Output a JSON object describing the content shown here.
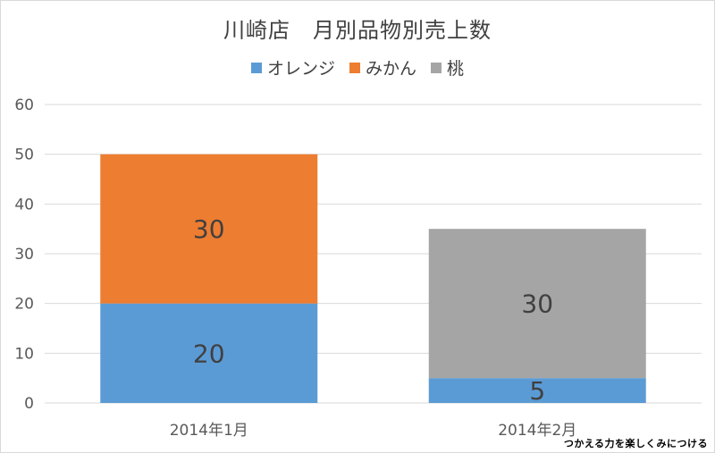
{
  "chart_data": {
    "type": "bar",
    "stacked": true,
    "title": "川崎店　月別品物別売上数",
    "categories": [
      "2014年1月",
      "2014年2月"
    ],
    "series": [
      {
        "name": "オレンジ",
        "color": "#5b9bd5",
        "values": [
          20,
          5
        ]
      },
      {
        "name": "みかん",
        "color": "#ed7d31",
        "values": [
          30,
          0
        ]
      },
      {
        "name": "桃",
        "color": "#a5a5a5",
        "values": [
          0,
          30
        ]
      }
    ],
    "ylim": [
      0,
      60
    ],
    "yticks": [
      0,
      10,
      20,
      30,
      40,
      50,
      60
    ],
    "grid": true,
    "legend_position": "top",
    "data_labels": true
  },
  "watermark": "つかえる力を楽しくみにつける"
}
